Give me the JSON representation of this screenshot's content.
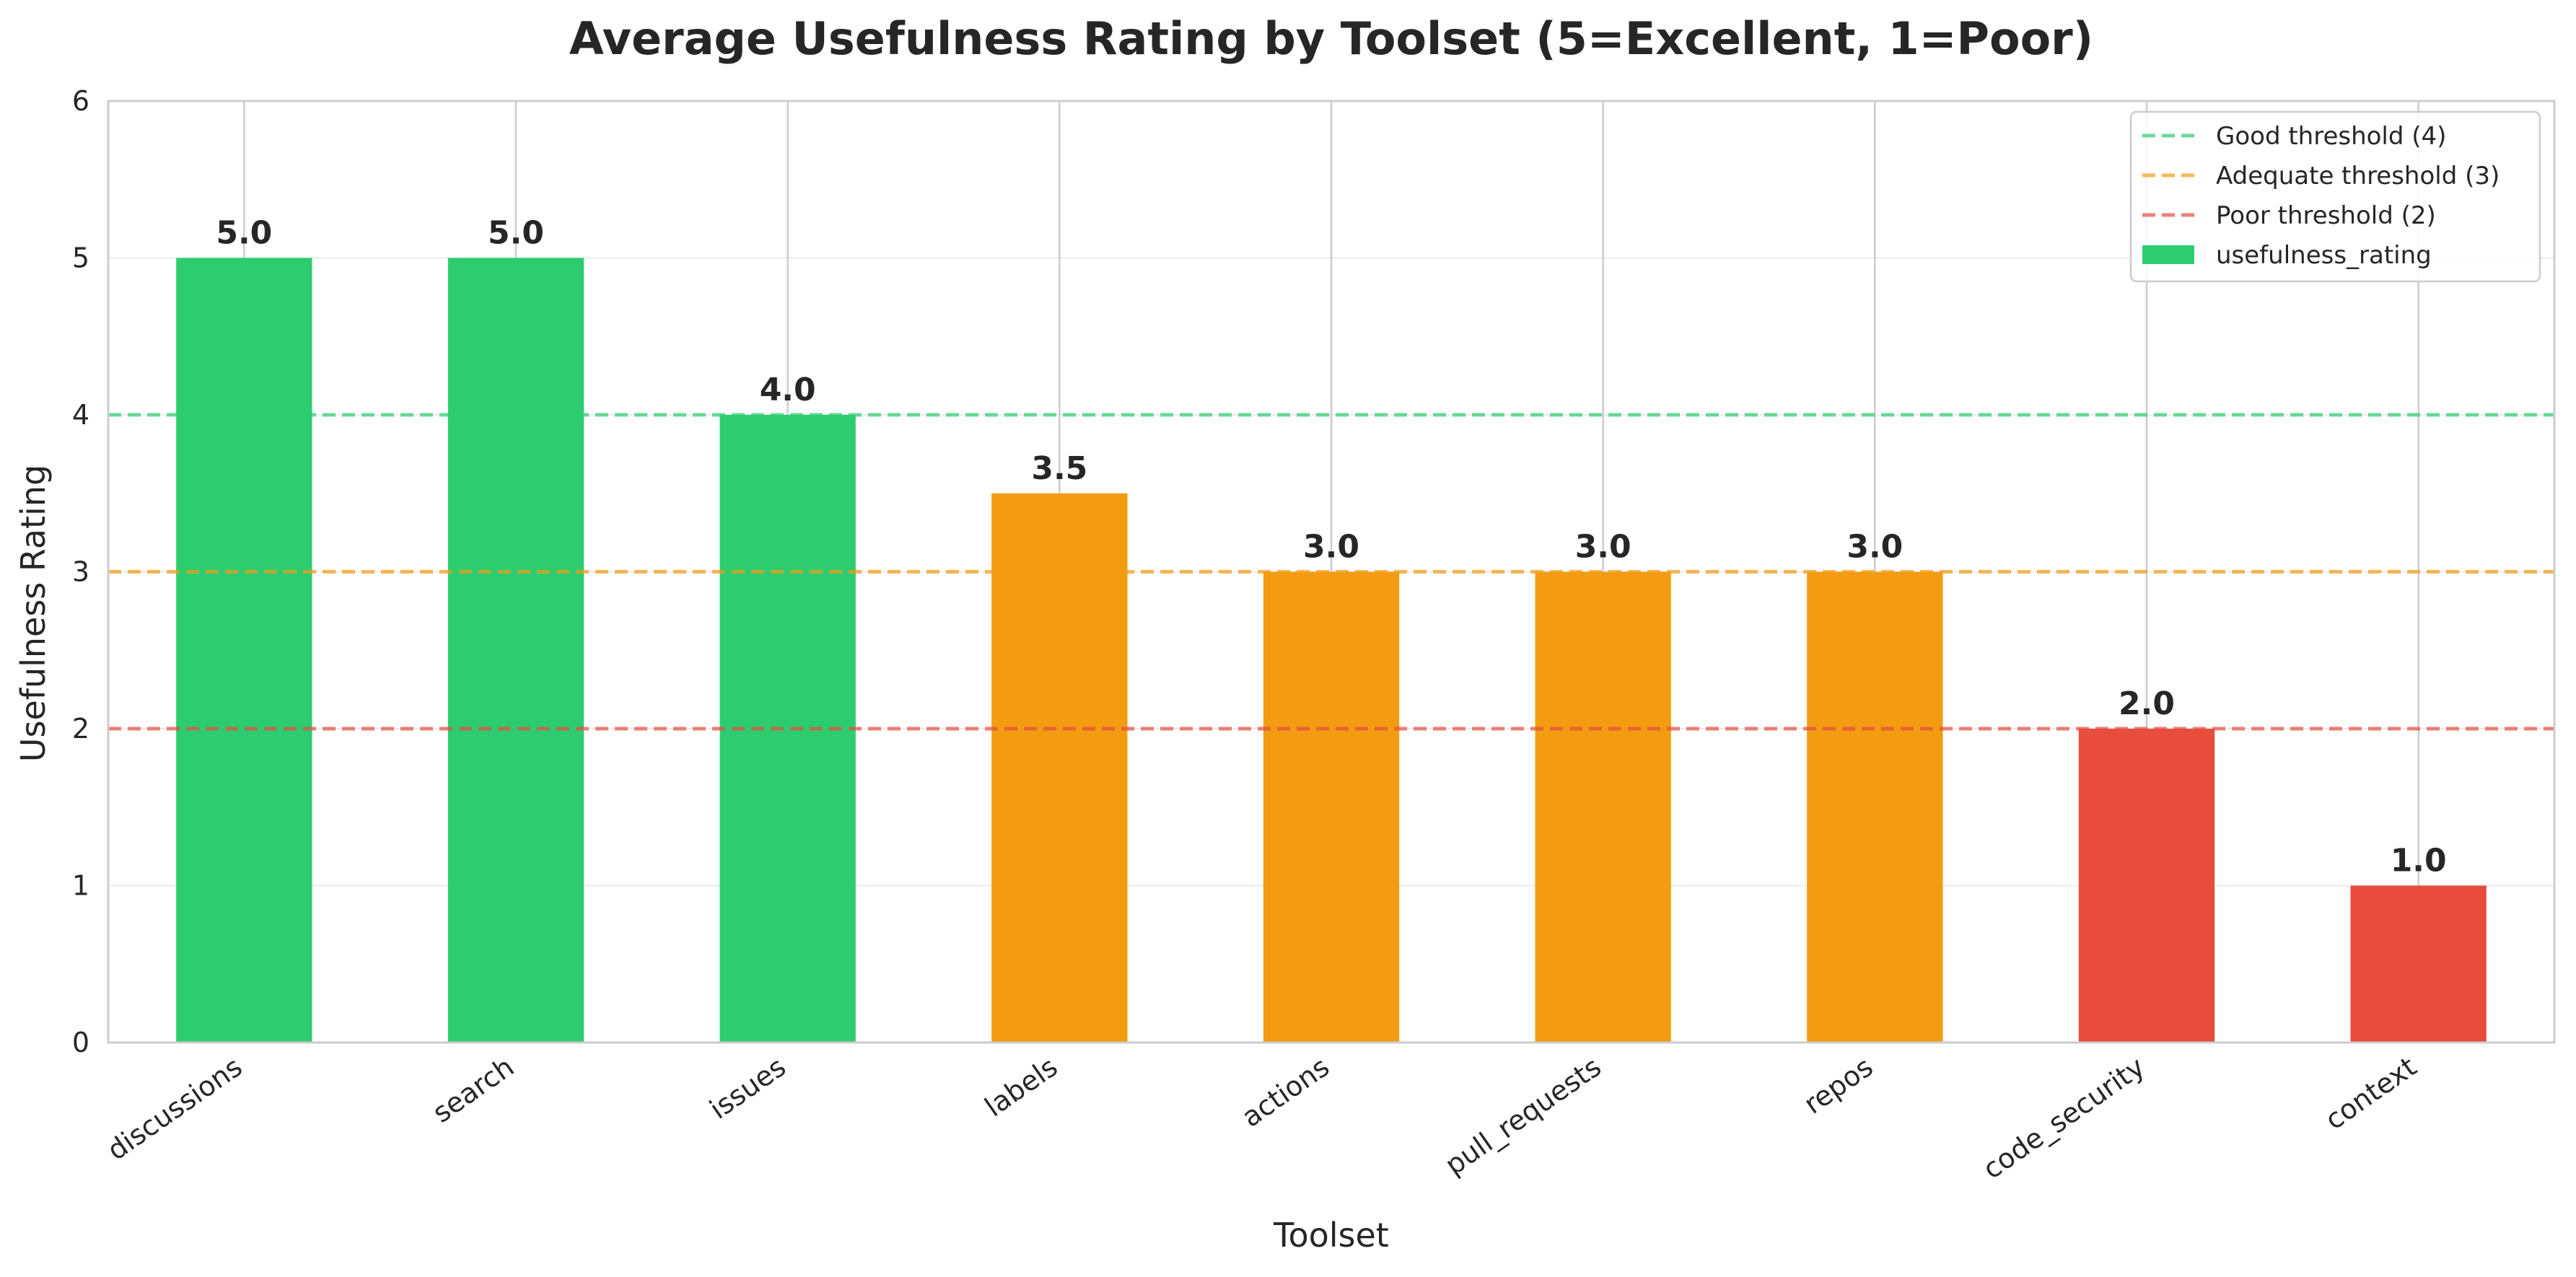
{
  "chart_data": {
    "type": "bar",
    "title": "Average Usefulness Rating by Toolset (5=Excellent, 1=Poor)",
    "xlabel": "Toolset",
    "ylabel": "Usefulness Rating",
    "ylim": [
      0,
      6
    ],
    "yticks": [
      0,
      1,
      2,
      3,
      4,
      5,
      6
    ],
    "grid": true,
    "categories": [
      "discussions",
      "search",
      "issues",
      "labels",
      "actions",
      "pull_requests",
      "repos",
      "code_security",
      "context"
    ],
    "series": [
      {
        "name": "usefulness_rating",
        "values": [
          5.0,
          5.0,
          4.0,
          3.5,
          3.0,
          3.0,
          3.0,
          2.0,
          1.0
        ],
        "value_labels": [
          "5.0",
          "5.0",
          "4.0",
          "3.5",
          "3.0",
          "3.0",
          "3.0",
          "2.0",
          "1.0"
        ],
        "colors": [
          "#2ecc71",
          "#2ecc71",
          "#2ecc71",
          "#f39c12",
          "#f39c12",
          "#f39c12",
          "#f39c12",
          "#e74c3c",
          "#e74c3c"
        ],
        "legend_color": "#2ecc71"
      }
    ],
    "thresholds": [
      {
        "name": "Good threshold (4)",
        "value": 4,
        "color": "#2ecc71"
      },
      {
        "name": "Adequate threshold (3)",
        "value": 3,
        "color": "#f39c12"
      },
      {
        "name": "Poor threshold (2)",
        "value": 2,
        "color": "#e74c3c"
      }
    ],
    "legend_position": "top-right"
  }
}
